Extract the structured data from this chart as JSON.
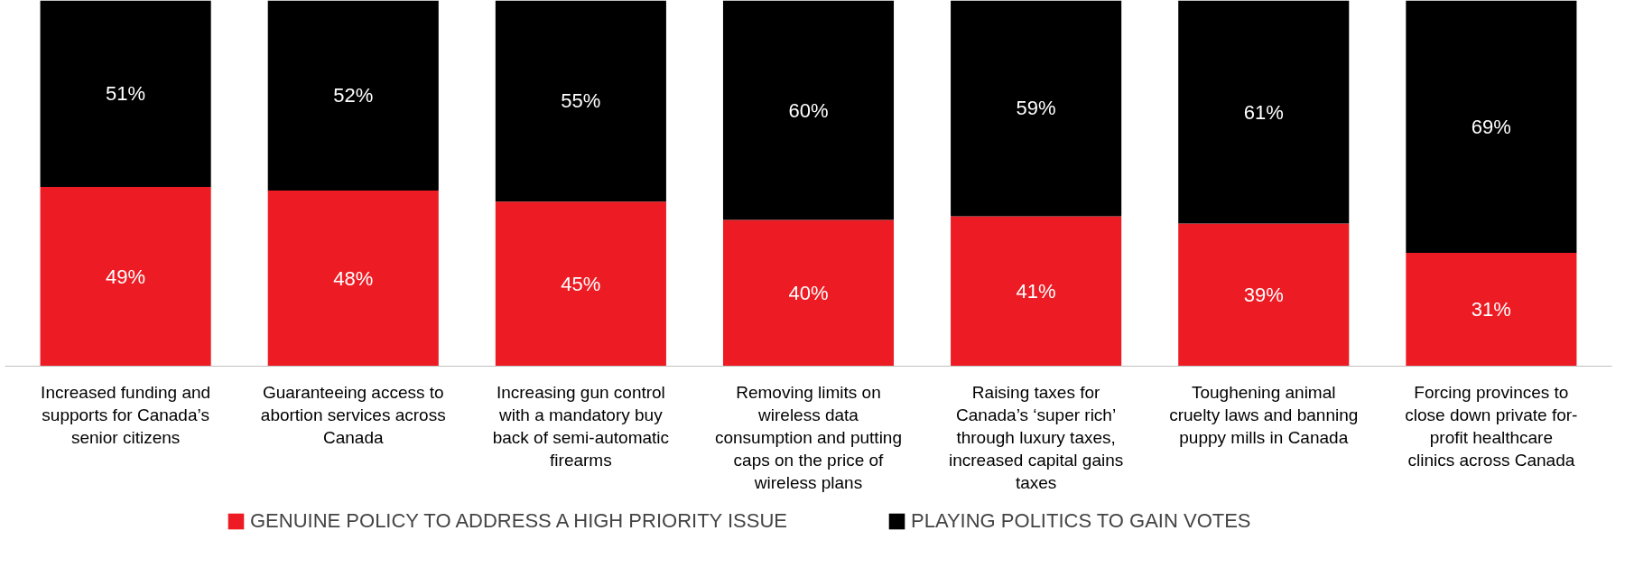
{
  "chart_data": {
    "type": "bar",
    "stacked": true,
    "legend": "bottom",
    "categories": [
      "Increased funding and supports for Canada’s senior citizens",
      "Guaranteeing access to abortion services across Canada",
      "Increasing gun control with a mandatory buy back of semi-automatic firearms",
      "Removing limits on wireless data consumption and putting caps on the price of wireless plans",
      "Raising taxes for Canada’s ‘super rich’ through luxury taxes, increased capital gains taxes",
      "Toughening animal cruelty laws and banning puppy mills in Canada",
      "Forcing provinces to close down private for-profit healthcare clinics across Canada"
    ],
    "series": [
      {
        "name": "GENUINE POLICY TO ADDRESS A HIGH PRIORITY ISSUE",
        "color": "#ed1c24",
        "values": [
          49,
          48,
          45,
          40,
          41,
          39,
          31
        ],
        "value_labels": [
          "49%",
          "48%",
          "45%",
          "40%",
          "41%",
          "39%",
          "31%"
        ]
      },
      {
        "name": "PLAYING POLITICS TO GAIN VOTES",
        "color": "#000000",
        "values": [
          51,
          52,
          55,
          60,
          59,
          61,
          69
        ],
        "value_labels": [
          "51%",
          "52%",
          "55%",
          "60%",
          "59%",
          "61%",
          "69%"
        ]
      }
    ]
  }
}
